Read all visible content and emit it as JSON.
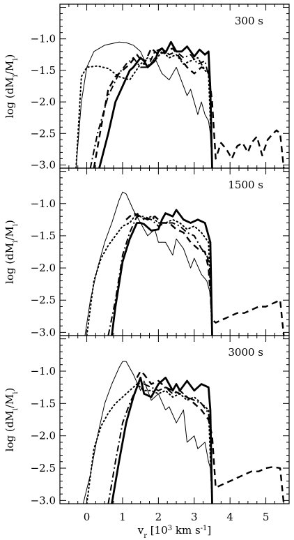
{
  "chart_data": {
    "type": "line",
    "xlabel": "v_r [10^3 km s^-1]",
    "ylabel": "log (dM_i/M_i)",
    "xlim": [
      -0.75,
      5.65
    ],
    "ylim": [
      -3.05,
      -0.45
    ],
    "xticks": [
      "0",
      "1",
      "2",
      "3",
      "4",
      "5"
    ],
    "yticks": [
      "-1.0",
      "-1.5",
      "-2.0",
      "-2.5",
      "-3.0"
    ],
    "line_styles": {
      "thin": "solid thin",
      "thick": "solid thick",
      "dotted": "dotted",
      "dashed": "dashed",
      "dashdot": "dash-dot"
    },
    "panels": [
      {
        "label": "300 s",
        "series": [
          {
            "style": "thin",
            "x": [
              -0.3,
              -0.15,
              0,
              0.2,
              0.5,
              0.9,
              1.1,
              1.3,
              1.5,
              1.7,
              1.9,
              2.1,
              2.3,
              2.5,
              2.6,
              2.8,
              2.9,
              3.1,
              3.2,
              3.3,
              3.4,
              3.45,
              3.5
            ],
            "y": [
              -3.05,
              -2.0,
              -1.45,
              -1.2,
              -1.1,
              -1.05,
              -1.06,
              -1.1,
              -1.2,
              -1.45,
              -1.3,
              -1.55,
              -1.65,
              -1.45,
              -1.6,
              -1.9,
              -1.8,
              -2.2,
              -2.0,
              -2.2,
              -2.3,
              -2.5,
              -3.05
            ]
          },
          {
            "style": "thick",
            "x": [
              0.35,
              0.6,
              0.8,
              1.0,
              1.2,
              1.3,
              1.5,
              1.6,
              1.7,
              1.9,
              2.0,
              2.1,
              2.2,
              2.35,
              2.5,
              2.65,
              2.8,
              3.0,
              3.15,
              3.3,
              3.4,
              3.45,
              3.5
            ],
            "y": [
              -3.05,
              -2.5,
              -2.0,
              -1.75,
              -1.5,
              -1.45,
              -1.3,
              -1.35,
              -1.45,
              -1.35,
              -1.2,
              -1.15,
              -1.22,
              -1.05,
              -1.2,
              -1.2,
              -1.12,
              -1.28,
              -1.17,
              -1.25,
              -1.2,
              -1.8,
              -3.05
            ]
          },
          {
            "style": "dotted",
            "x": [
              -0.3,
              -0.15,
              0,
              0.3,
              0.6,
              0.9,
              1.2,
              1.5,
              1.7,
              1.9,
              2.1,
              2.3,
              2.5,
              2.7,
              2.9,
              3.1,
              3.3,
              3.4,
              3.5
            ],
            "y": [
              -3.05,
              -1.6,
              -1.45,
              -1.43,
              -1.47,
              -1.6,
              -1.65,
              -1.4,
              -1.3,
              -1.35,
              -1.2,
              -1.3,
              -1.25,
              -1.4,
              -1.35,
              -1.3,
              -1.5,
              -1.55,
              -3.05
            ]
          },
          {
            "style": "dashed",
            "x": [
              0.2,
              0.4,
              0.6,
              0.8,
              1.0,
              1.2,
              1.4,
              1.6,
              1.8,
              2.0,
              2.2,
              2.4,
              2.6,
              2.8,
              3.0,
              3.2,
              3.4,
              3.5,
              3.6,
              3.75,
              3.9,
              4.05,
              4.2,
              4.35,
              4.5,
              4.6,
              4.75,
              4.9,
              5.05,
              5.2,
              5.3,
              5.4,
              5.5
            ],
            "y": [
              -3.05,
              -2.4,
              -1.8,
              -1.6,
              -1.5,
              -1.4,
              -1.25,
              -1.4,
              -1.15,
              -1.25,
              -1.2,
              -1.15,
              -1.3,
              -1.45,
              -1.55,
              -1.45,
              -1.5,
              -2.0,
              -2.9,
              -2.65,
              -2.75,
              -2.9,
              -2.7,
              -2.65,
              -2.8,
              -2.65,
              -2.55,
              -2.85,
              -2.6,
              -2.5,
              -2.45,
              -2.5,
              -3.05
            ]
          },
          {
            "style": "dashdot",
            "x": [
              0.1,
              0.3,
              0.6,
              0.9,
              1.1,
              1.3,
              1.5,
              1.7,
              1.9,
              2.1,
              2.3,
              2.5,
              2.7,
              2.9,
              3.1,
              3.3,
              3.45,
              3.5
            ],
            "y": [
              -3.05,
              -2.5,
              -1.9,
              -1.55,
              -1.4,
              -1.3,
              -1.45,
              -1.45,
              -1.2,
              -1.15,
              -1.25,
              -1.2,
              -1.3,
              -1.25,
              -1.4,
              -1.35,
              -1.7,
              -3.05
            ]
          }
        ]
      },
      {
        "label": "1500 s",
        "series": [
          {
            "style": "thin",
            "x": [
              -0.05,
              0.1,
              0.3,
              0.5,
              0.7,
              0.9,
              1.0,
              1.1,
              1.3,
              1.5,
              1.7,
              1.9,
              2.0,
              2.2,
              2.4,
              2.5,
              2.7,
              2.9,
              3.0,
              3.2,
              3.35,
              3.45,
              3.5
            ],
            "y": [
              -3.05,
              -2.5,
              -2.0,
              -1.6,
              -1.3,
              -0.95,
              -0.82,
              -0.85,
              -1.1,
              -1.3,
              -1.5,
              -1.4,
              -1.6,
              -1.6,
              -1.8,
              -1.55,
              -1.7,
              -2.0,
              -1.85,
              -2.1,
              -2.2,
              -2.4,
              -3.05
            ]
          },
          {
            "style": "thick",
            "x": [
              0.7,
              0.8,
              1.0,
              1.2,
              1.4,
              1.5,
              1.6,
              1.8,
              2.0,
              2.1,
              2.2,
              2.4,
              2.5,
              2.7,
              2.9,
              3.1,
              3.3,
              3.45,
              3.5
            ],
            "y": [
              -3.05,
              -2.6,
              -1.9,
              -1.55,
              -1.3,
              -1.3,
              -1.32,
              -1.42,
              -1.4,
              -1.25,
              -1.15,
              -1.2,
              -1.1,
              -1.25,
              -1.3,
              -1.25,
              -1.3,
              -1.6,
              -3.05
            ]
          },
          {
            "style": "dotted",
            "x": [
              0,
              0.2,
              0.4,
              0.6,
              0.8,
              1.0,
              1.2,
              1.4,
              1.6,
              1.8,
              2.0,
              2.2,
              2.4,
              2.6,
              2.8,
              3.0,
              3.2,
              3.4,
              3.5
            ],
            "y": [
              -3.05,
              -2.2,
              -1.85,
              -1.65,
              -1.5,
              -1.35,
              -1.3,
              -1.15,
              -1.25,
              -1.2,
              -1.3,
              -1.3,
              -1.25,
              -1.3,
              -1.4,
              -1.35,
              -1.45,
              -1.6,
              -3.05
            ]
          },
          {
            "style": "dashed",
            "x": [
              1.1,
              1.3,
              1.5,
              1.7,
              1.9,
              2.1,
              2.3,
              2.5,
              2.7,
              2.9,
              3.1,
              3.3,
              3.4,
              3.5,
              3.6,
              3.8,
              4.0,
              4.2,
              4.4,
              4.6,
              4.8,
              5.0,
              5.2,
              5.4,
              5.5
            ],
            "y": [
              -1.25,
              -1.15,
              -1.2,
              -1.25,
              -1.2,
              -1.3,
              -1.3,
              -1.4,
              -1.45,
              -1.6,
              -1.7,
              -1.75,
              -2.0,
              -2.8,
              -2.85,
              -2.8,
              -2.75,
              -2.7,
              -2.7,
              -2.65,
              -2.6,
              -2.6,
              -2.55,
              -2.5,
              -3.05
            ]
          },
          {
            "style": "dashdot",
            "x": [
              0.6,
              0.8,
              1.0,
              1.2,
              1.4,
              1.6,
              1.8,
              2.0,
              2.2,
              2.4,
              2.6,
              2.8,
              3.0,
              3.2,
              3.35,
              3.45,
              3.5
            ],
            "y": [
              -3.05,
              -2.5,
              -1.8,
              -1.45,
              -1.2,
              -1.2,
              -1.25,
              -1.35,
              -1.3,
              -1.3,
              -1.35,
              -1.45,
              -1.5,
              -1.7,
              -1.8,
              -2.0,
              -3.05
            ]
          }
        ]
      },
      {
        "label": "3000 s",
        "series": [
          {
            "style": "thin",
            "x": [
              -0.1,
              0.1,
              0.3,
              0.5,
              0.7,
              0.9,
              1.0,
              1.1,
              1.3,
              1.5,
              1.6,
              1.8,
              2.0,
              2.2,
              2.3,
              2.5,
              2.7,
              2.8,
              3.0,
              3.1,
              3.3,
              3.4,
              3.45,
              3.5
            ],
            "y": [
              -3.05,
              -2.6,
              -2.0,
              -1.5,
              -1.2,
              -0.95,
              -0.85,
              -0.85,
              -1.05,
              -1.3,
              -1.15,
              -1.45,
              -1.35,
              -1.6,
              -1.55,
              -1.8,
              -1.6,
              -2.1,
              -2.0,
              -2.2,
              -2.1,
              -2.4,
              -2.5,
              -3.05
            ]
          },
          {
            "style": "thick",
            "x": [
              0.7,
              0.9,
              1.1,
              1.3,
              1.4,
              1.5,
              1.6,
              1.8,
              2.0,
              2.2,
              2.4,
              2.5,
              2.6,
              2.8,
              3.0,
              3.2,
              3.4,
              3.45,
              3.5
            ],
            "y": [
              -3.05,
              -2.4,
              -1.8,
              -1.4,
              -1.25,
              -1.1,
              -1.35,
              -1.4,
              -1.2,
              -1.1,
              -1.3,
              -1.2,
              -1.3,
              -1.15,
              -1.3,
              -1.2,
              -1.25,
              -1.6,
              -3.05
            ]
          },
          {
            "style": "dotted",
            "x": [
              0,
              0.2,
              0.4,
              0.6,
              0.8,
              1.0,
              1.2,
              1.4,
              1.6,
              1.8,
              2.0,
              2.2,
              2.4,
              2.6,
              2.8,
              3.0,
              3.2,
              3.4,
              3.5
            ],
            "y": [
              -3.05,
              -2.2,
              -1.85,
              -1.65,
              -1.5,
              -1.4,
              -1.3,
              -1.2,
              -1.3,
              -1.3,
              -1.35,
              -1.3,
              -1.4,
              -1.35,
              -1.45,
              -1.4,
              -1.5,
              -1.6,
              -3.05
            ]
          },
          {
            "style": "dashed",
            "x": [
              1.4,
              1.5,
              1.6,
              1.8,
              2.0,
              2.2,
              2.4,
              2.6,
              2.8,
              3.0,
              3.2,
              3.4,
              3.5,
              3.6,
              3.8,
              4.0,
              4.2,
              4.4,
              4.6,
              4.8,
              5.0,
              5.2,
              5.4,
              5.5
            ],
            "y": [
              -1.1,
              -1.0,
              -1.05,
              -1.2,
              -1.15,
              -1.25,
              -1.3,
              -1.35,
              -1.4,
              -1.5,
              -1.6,
              -1.75,
              -2.0,
              -2.8,
              -2.75,
              -2.7,
              -2.65,
              -2.6,
              -2.55,
              -2.55,
              -2.5,
              -2.48,
              -2.5,
              -3.05
            ]
          },
          {
            "style": "dashdot",
            "x": [
              0.6,
              0.8,
              1.0,
              1.2,
              1.4,
              1.5,
              1.6,
              1.8,
              2.0,
              2.2,
              2.4,
              2.6,
              2.8,
              3.0,
              3.2,
              3.4,
              3.45,
              3.5
            ],
            "y": [
              -3.05,
              -2.4,
              -1.8,
              -1.5,
              -1.25,
              -1.15,
              -1.2,
              -1.25,
              -1.3,
              -1.25,
              -1.35,
              -1.3,
              -1.4,
              -1.45,
              -1.5,
              -1.65,
              -1.9,
              -3.05
            ]
          }
        ]
      }
    ]
  }
}
